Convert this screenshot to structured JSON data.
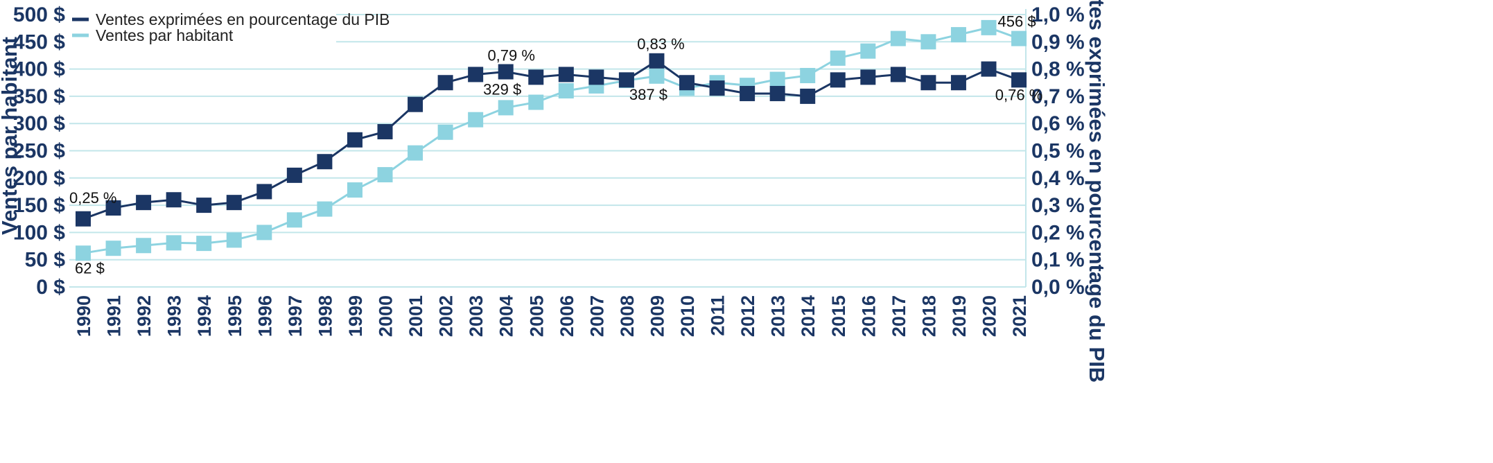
{
  "chart_data": {
    "type": "line",
    "categories": [
      "1990",
      "1991",
      "1992",
      "1993",
      "1994",
      "1995",
      "1996",
      "1997",
      "1998",
      "1999",
      "2000",
      "2001",
      "2002",
      "2003",
      "2004",
      "2005",
      "2006",
      "2007",
      "2008",
      "2009",
      "2010",
      "2011",
      "2012",
      "2013",
      "2014",
      "2015",
      "2016",
      "2017",
      "2018",
      "2019",
      "2020",
      "2021"
    ],
    "series": [
      {
        "name": "Ventes exprimées en pourcentage du PIB",
        "axis": "right",
        "color": "#1b3664",
        "values": [
          0.25,
          0.29,
          0.31,
          0.32,
          0.3,
          0.31,
          0.35,
          0.41,
          0.46,
          0.54,
          0.57,
          0.67,
          0.75,
          0.78,
          0.79,
          0.77,
          0.78,
          0.77,
          0.76,
          0.83,
          0.75,
          0.73,
          0.71,
          0.71,
          0.7,
          0.76,
          0.77,
          0.78,
          0.75,
          0.75,
          0.8,
          0.76
        ]
      },
      {
        "name": "Ventes par habitant",
        "axis": "left",
        "color": "#8dd3e0",
        "values": [
          62,
          71,
          76,
          81,
          80,
          86,
          100,
          123,
          143,
          178,
          206,
          246,
          284,
          307,
          329,
          339,
          360,
          369,
          379,
          387,
          365,
          375,
          370,
          381,
          388,
          420,
          433,
          456,
          450,
          463,
          476,
          456
        ]
      }
    ],
    "ylabel_left": "Ventes par habitant",
    "ylabel_right": "Ventes exprimées en pourcentage du PIB",
    "ylim_left": [
      0,
      500
    ],
    "ylim_right": [
      0,
      1.0
    ],
    "yticks_left": [
      "0 $",
      "50 $",
      "100 $",
      "150 $",
      "200 $",
      "250 $",
      "300 $",
      "350 $",
      "400 $",
      "450 $",
      "500 $"
    ],
    "yticks_right": [
      "0,0 %",
      "0,1 %",
      "0,2 %",
      "0,3 %",
      "0,4 %",
      "0,5 %",
      "0,6 %",
      "0,7 %",
      "0,8 %",
      "0,9 %",
      "1,0 %"
    ],
    "grid": true,
    "grid_color": "#c2e6ea",
    "legend_placement": "top-left",
    "annotations": [
      {
        "series": 0,
        "index": 0,
        "text": "0,25 %"
      },
      {
        "series": 0,
        "index": 14,
        "text": "0,79 %"
      },
      {
        "series": 0,
        "index": 19,
        "text": "0,83 %"
      },
      {
        "series": 0,
        "index": 31,
        "text": "0,76 %"
      },
      {
        "series": 1,
        "index": 0,
        "text": "62 $"
      },
      {
        "series": 1,
        "index": 14,
        "text": "329 $"
      },
      {
        "series": 1,
        "index": 19,
        "text": "387 $"
      },
      {
        "series": 1,
        "index": 31,
        "text": "456 $"
      }
    ]
  }
}
